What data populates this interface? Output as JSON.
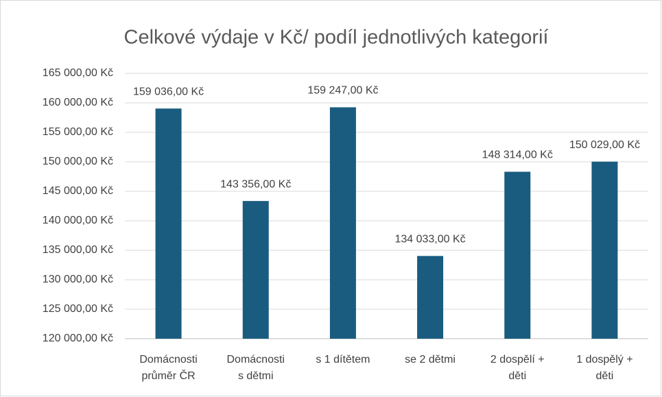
{
  "chart_data": {
    "type": "bar",
    "title": "Celkové výdaje v Kč/ podíl jednotlivých kategorií",
    "categories": [
      "Domácnosti\nprůměr ČR",
      "Domácnosti\ns dětmi",
      "s 1 dítětem",
      "se 2 dětmi",
      "2 dospělí +\nděti",
      "1 dospělý +\nděti"
    ],
    "values": [
      159036,
      143356,
      159247,
      134033,
      148314,
      150029
    ],
    "value_labels": [
      "159 036,00 Kč",
      "143 356,00 Kč",
      "159 247,00 Kč",
      "134 033,00 Kč",
      "148 314,00 Kč",
      "150 029,00 Kč"
    ],
    "color": "#1a5c80",
    "ylim": [
      120000,
      165000
    ],
    "yticks": [
      {
        "value": 120000,
        "label": "120 000,00 Kč"
      },
      {
        "value": 125000,
        "label": "125 000,00 Kč"
      },
      {
        "value": 130000,
        "label": "130 000,00 Kč"
      },
      {
        "value": 135000,
        "label": "135 000,00 Kč"
      },
      {
        "value": 140000,
        "label": "140 000,00 Kč"
      },
      {
        "value": 145000,
        "label": "145 000,00 Kč"
      },
      {
        "value": 150000,
        "label": "150 000,00 Kč"
      },
      {
        "value": 155000,
        "label": "155 000,00 Kč"
      },
      {
        "value": 160000,
        "label": "160 000,00 Kč"
      },
      {
        "value": 165000,
        "label": "165 000,00 Kč"
      }
    ],
    "grid": true
  }
}
